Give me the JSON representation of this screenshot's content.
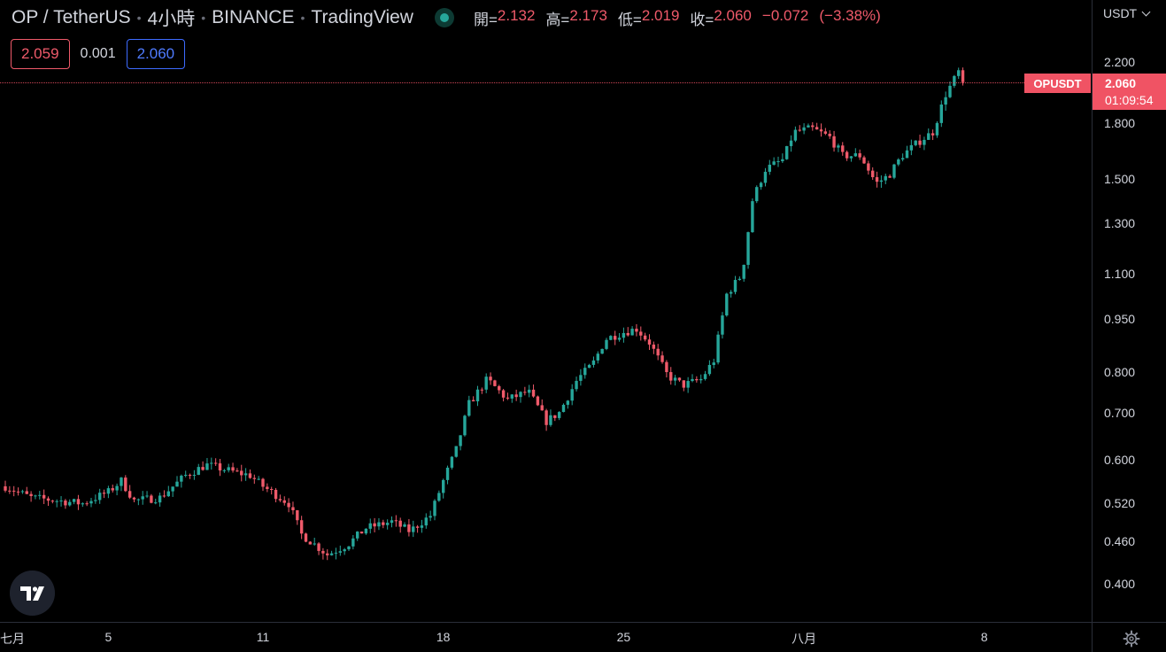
{
  "header": {
    "symbol": "OP / TetherUS",
    "interval": "4小時",
    "exchange": "BINANCE",
    "source": "TradingView",
    "ohlc": {
      "open_label": "開=",
      "open": "2.132",
      "high_label": "高=",
      "high": "2.173",
      "low_label": "低=",
      "low": "2.019",
      "close_label": "收=",
      "close": "2.060",
      "change": "−0.072",
      "change_pct": "(−3.38%)"
    }
  },
  "trade": {
    "sell": "2.059",
    "spread": "0.001",
    "buy": "2.060"
  },
  "price_axis": {
    "currency": "USDT",
    "last_price": "2.060",
    "countdown": "01:09:54",
    "symbol_tag": "OPUSDT"
  },
  "time_axis": {
    "labels": [
      {
        "text": "七月",
        "day": 1
      },
      {
        "text": "5",
        "day": 5
      },
      {
        "text": "11",
        "day": 11
      },
      {
        "text": "18",
        "day": 18
      },
      {
        "text": "25",
        "day": 25
      },
      {
        "text": "八月",
        "day": 32
      },
      {
        "text": "8",
        "day": 39
      }
    ]
  },
  "colors": {
    "up": "#26a69a",
    "down": "#ef5a6a",
    "background": "#000000",
    "last_price": "#f05364",
    "buy": "#4f7bff"
  },
  "icons": [
    "status-dot-icon",
    "tradingview-logo-icon",
    "settings-gear-icon",
    "chevron-down-icon"
  ],
  "chart_data": {
    "type": "candlestick",
    "scale": "log",
    "y_ticks": [
      "2.200",
      "1.800",
      "1.500",
      "1.300",
      "1.100",
      "0.950",
      "0.800",
      "0.700",
      "0.600",
      "0.520",
      "0.460",
      "0.400"
    ],
    "ylim": [
      0.36,
      2.5
    ],
    "x_unit": "day",
    "xlim": [
      1,
      43
    ],
    "grid": false,
    "close_anchors": [
      [
        1.0,
        0.55
      ],
      [
        2.0,
        0.53
      ],
      [
        3.0,
        0.525
      ],
      [
        4.0,
        0.52
      ],
      [
        5.0,
        0.54
      ],
      [
        5.5,
        0.56
      ],
      [
        6.0,
        0.525
      ],
      [
        7.0,
        0.53
      ],
      [
        8.0,
        0.57
      ],
      [
        8.8,
        0.59
      ],
      [
        9.2,
        0.585
      ],
      [
        10.0,
        0.575
      ],
      [
        10.5,
        0.57
      ],
      [
        11.0,
        0.55
      ],
      [
        12.0,
        0.52
      ],
      [
        12.5,
        0.47
      ],
      [
        13.0,
        0.455
      ],
      [
        13.5,
        0.44
      ],
      [
        14.3,
        0.455
      ],
      [
        15.0,
        0.48
      ],
      [
        16.0,
        0.49
      ],
      [
        16.7,
        0.475
      ],
      [
        17.5,
        0.5
      ],
      [
        18.0,
        0.56
      ],
      [
        18.5,
        0.62
      ],
      [
        19.0,
        0.72
      ],
      [
        19.7,
        0.78
      ],
      [
        20.5,
        0.73
      ],
      [
        21.3,
        0.75
      ],
      [
        22.0,
        0.68
      ],
      [
        22.5,
        0.7
      ],
      [
        23.2,
        0.78
      ],
      [
        23.8,
        0.82
      ],
      [
        24.3,
        0.89
      ],
      [
        25.0,
        0.91
      ],
      [
        25.5,
        0.92
      ],
      [
        26.0,
        0.88
      ],
      [
        26.7,
        0.79
      ],
      [
        27.3,
        0.765
      ],
      [
        28.0,
        0.78
      ],
      [
        28.5,
        0.83
      ],
      [
        29.0,
        1.03
      ],
      [
        29.6,
        1.1
      ],
      [
        30.0,
        1.4
      ],
      [
        30.5,
        1.55
      ],
      [
        31.2,
        1.6
      ],
      [
        31.6,
        1.75
      ],
      [
        32.3,
        1.77
      ],
      [
        33.0,
        1.72
      ],
      [
        33.5,
        1.62
      ],
      [
        34.2,
        1.62
      ],
      [
        34.8,
        1.48
      ],
      [
        35.3,
        1.52
      ],
      [
        35.8,
        1.62
      ],
      [
        36.5,
        1.7
      ],
      [
        37.0,
        1.75
      ],
      [
        37.5,
        1.98
      ],
      [
        38.0,
        2.13
      ],
      [
        38.3,
        2.06
      ]
    ],
    "last_close": 2.06
  }
}
